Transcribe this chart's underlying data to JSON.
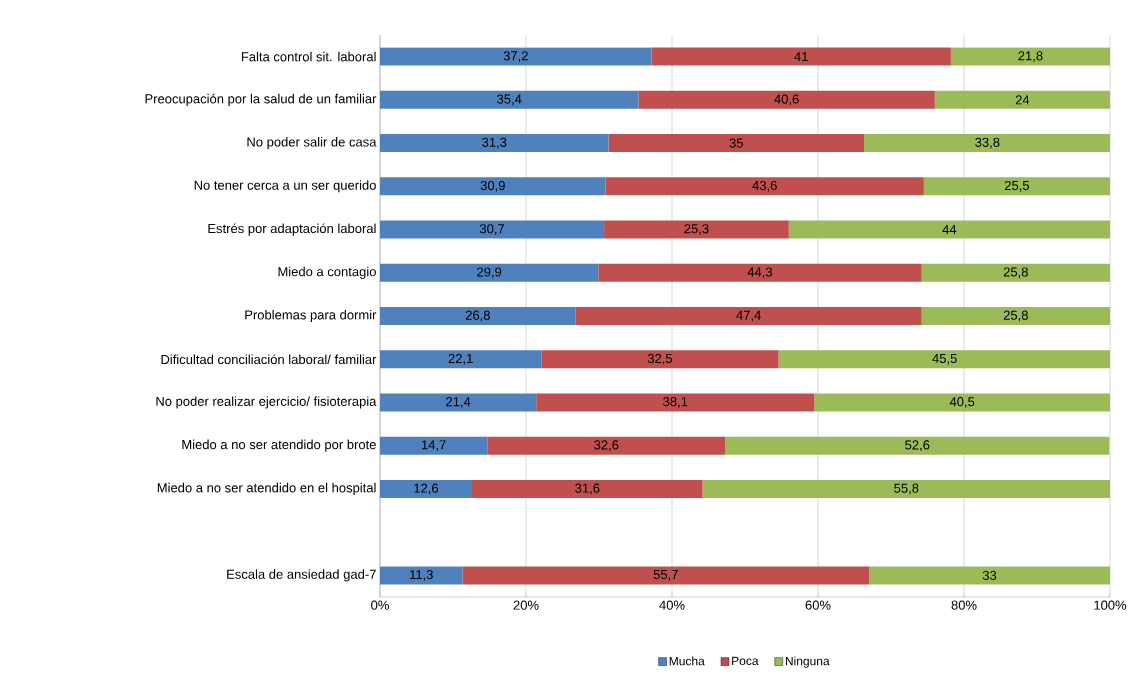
{
  "chart_data": {
    "type": "bar",
    "orientation": "horizontal",
    "stacked": true,
    "categories": [
      "Falta control sit. laboral",
      "Preocupación por la salud de un familiar",
      "No poder salir de casa",
      "No tener cerca a un ser querido",
      "Estrés por adaptación  laboral",
      "Miedo a contagio",
      "Problemas para dormir",
      "Dificultad conciliación laboral/ familiar",
      "No poder realizar ejercicio/ fisioterapia",
      "Miedo a no ser atendido por brote",
      "Miedo a no ser atendido  en el hospital",
      null,
      "Escala de ansiedad gad-7"
    ],
    "series": [
      {
        "name": "Mucha",
        "color": "#4f81bd",
        "values": [
          37.2,
          35.4,
          31.3,
          30.9,
          30.7,
          29.9,
          26.8,
          22.1,
          21.4,
          14.7,
          12.6,
          null,
          11.3
        ],
        "value_labels": [
          "37,2",
          "35,4",
          "31,3",
          "30,9",
          "30,7",
          "29,9",
          "26,8",
          "22,1",
          "21,4",
          "14,7",
          "12,6",
          null,
          "11,3"
        ]
      },
      {
        "name": "Poca",
        "color": "#c0504d",
        "values": [
          41,
          40.6,
          35,
          43.6,
          25.3,
          44.3,
          47.4,
          32.5,
          38.1,
          32.6,
          31.6,
          null,
          55.7
        ],
        "value_labels": [
          "41",
          "40,6",
          "35",
          "43,6",
          "25,3",
          "44,3",
          "47,4",
          "32,5",
          "38,1",
          "32,6",
          "31,6",
          null,
          "55,7"
        ]
      },
      {
        "name": "Ninguna",
        "color": "#9bbb59",
        "values": [
          21.8,
          24,
          33.8,
          25.5,
          44,
          25.8,
          25.8,
          45.5,
          40.5,
          52.6,
          55.8,
          null,
          33
        ],
        "value_labels": [
          "21,8",
          "24",
          "33,8",
          "25,5",
          "44",
          "25,8",
          "25,8",
          "45,5",
          "40,5",
          "52,6",
          "55,8",
          null,
          "33"
        ]
      }
    ],
    "xlim": [
      0,
      100
    ],
    "xticks": [
      {
        "value": 0,
        "label": "0%"
      },
      {
        "value": 20,
        "label": "20%"
      },
      {
        "value": 40,
        "label": "40%"
      },
      {
        "value": 60,
        "label": "60%"
      },
      {
        "value": 80,
        "label": "80%"
      },
      {
        "value": 100,
        "label": "100%"
      }
    ],
    "grid": "x",
    "legend": "bottom"
  }
}
